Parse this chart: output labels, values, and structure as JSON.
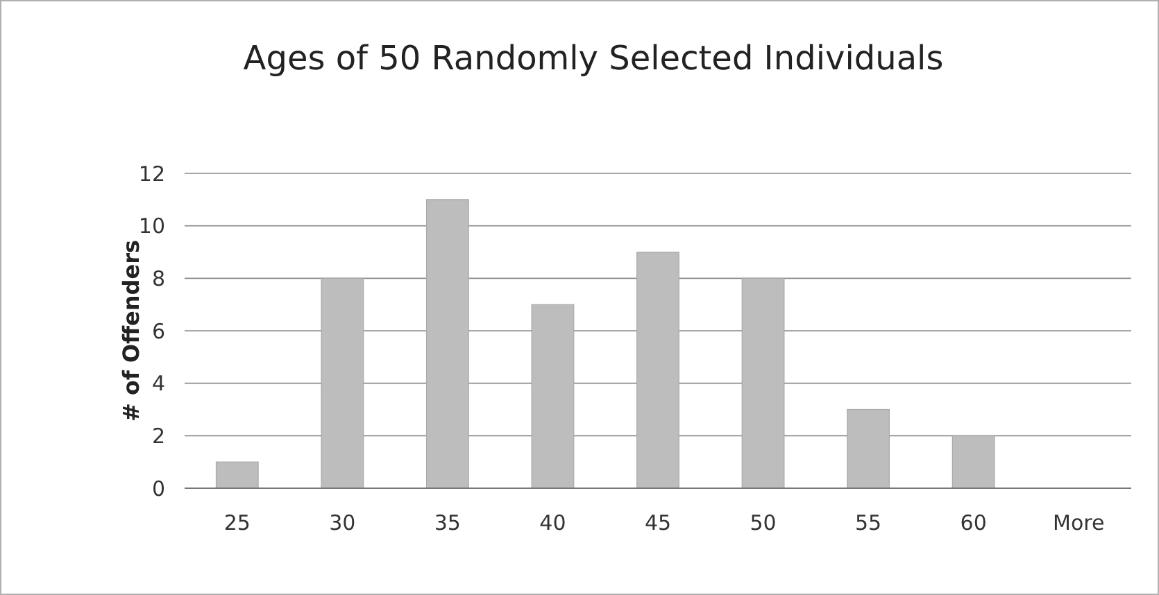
{
  "chart_data": {
    "type": "bar",
    "title": "Ages of 50 Randomly Selected Individuals",
    "ylabel": "# of Offenders",
    "categories": [
      "25",
      "30",
      "35",
      "40",
      "45",
      "50",
      "55",
      "60",
      "More"
    ],
    "values": [
      1,
      8,
      11,
      7,
      9,
      8,
      3,
      2,
      0
    ],
    "color": "#bdbdbd",
    "ylim": [
      0,
      12
    ],
    "yticks": [
      0,
      2,
      4,
      6,
      8,
      10,
      12
    ],
    "grid": "y"
  }
}
